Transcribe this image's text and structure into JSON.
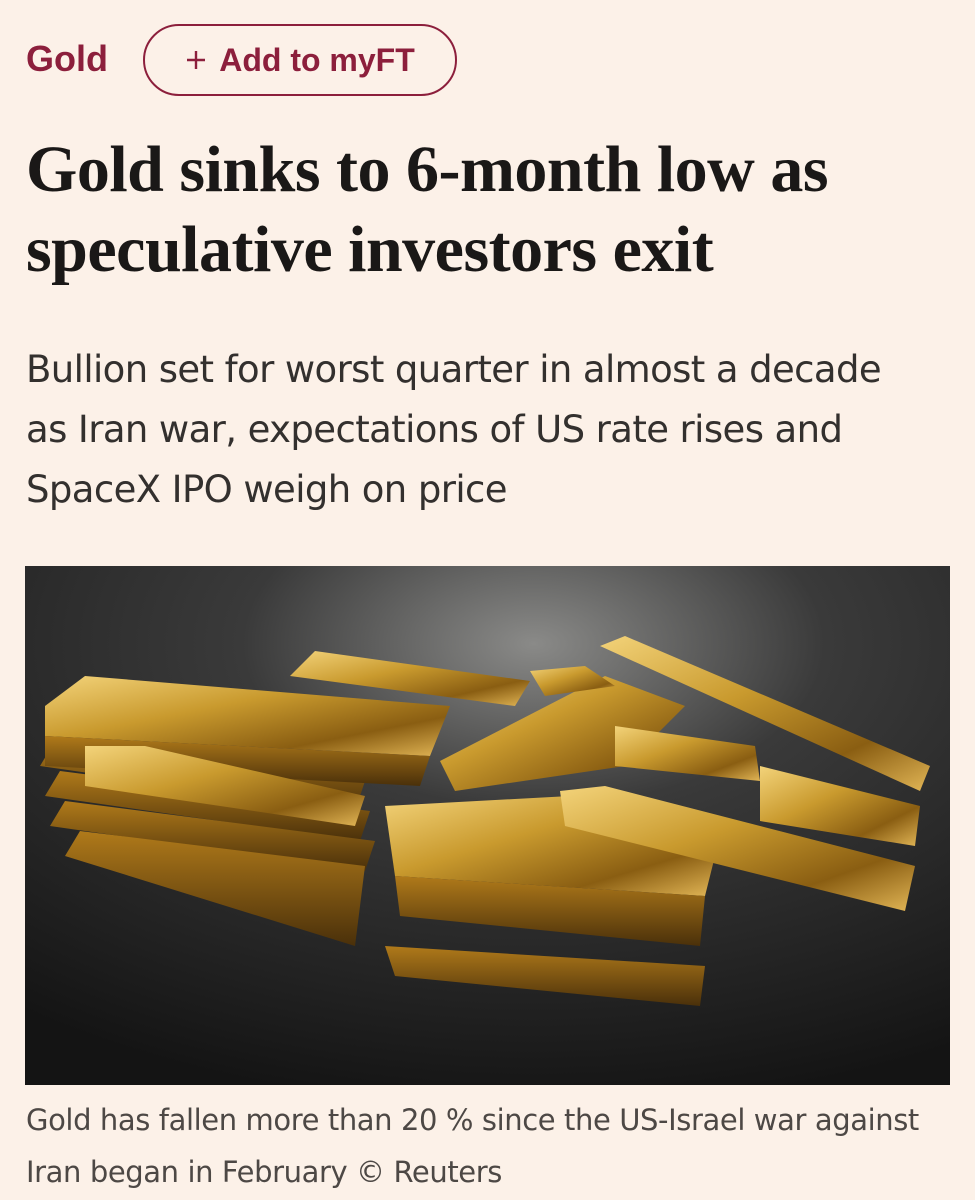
{
  "topic": "Gold",
  "follow_button": "Add to myFT",
  "headline": "Gold sinks to 6-month low as speculative investors exit",
  "standfirst": "Bullion set for worst quarter in almost a decade as Iran war, expectations of US rate rises and SpaceX IPO weigh on price",
  "image_caption": "Gold has fallen more than 20 % since the US-Israel war against Iran began in February © Reuters"
}
